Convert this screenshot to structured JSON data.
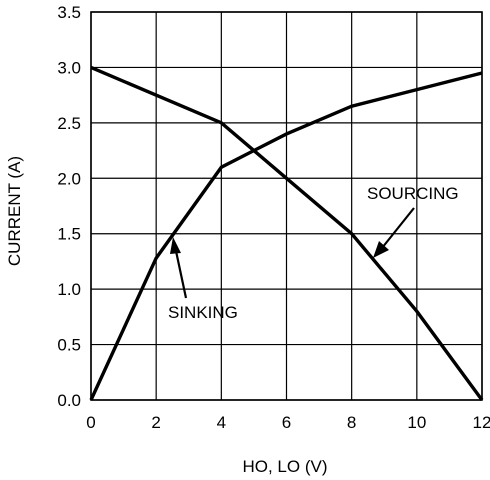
{
  "chart_data": {
    "type": "line",
    "xlabel": "HO, LO (V)",
    "ylabel": "CURRENT (A)",
    "xlim": [
      0,
      12
    ],
    "ylim": [
      0,
      3.5
    ],
    "x_ticks": [
      "0",
      "2",
      "4",
      "6",
      "8",
      "10",
      "12"
    ],
    "y_ticks": [
      "0.0",
      "0.5",
      "1.0",
      "1.5",
      "2.0",
      "2.5",
      "3.0",
      "3.5"
    ],
    "grid": true,
    "series": [
      {
        "name": "SINKING",
        "x": [
          0,
          2,
          4,
          6,
          8,
          10,
          12
        ],
        "y": [
          0,
          1.28,
          2.1,
          2.4,
          2.65,
          2.8,
          2.95
        ]
      },
      {
        "name": "SOURCING",
        "x": [
          0,
          4,
          6,
          8,
          10,
          12
        ],
        "y": [
          3.0,
          2.5,
          2.0,
          1.5,
          0.8,
          0.0
        ]
      }
    ],
    "annotations": [
      "SINKING",
      "SOURCING"
    ]
  }
}
